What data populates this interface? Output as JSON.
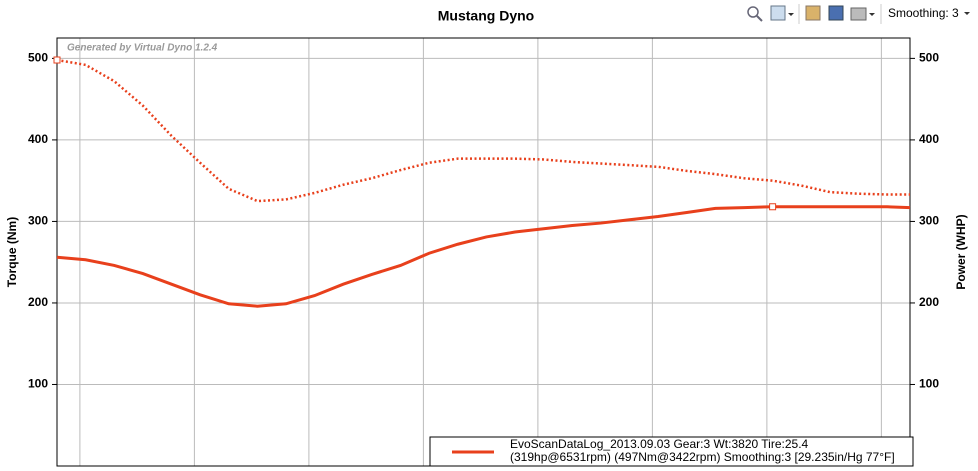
{
  "toolbar": {
    "smoothing": "Smoothing: 3"
  },
  "chart_data": {
    "type": "line",
    "title": "Mustang Dyno",
    "watermark": "Generated by Virtual Dyno 1.2.4",
    "y_label": "Torque (Nm)",
    "y2_label": "Power (WHP)",
    "x": [
      3400,
      3525,
      3650,
      3775,
      3900,
      4025,
      4150,
      4275,
      4400,
      4525,
      4650,
      4775,
      4900,
      5025,
      5150,
      5275,
      5400,
      5525,
      5650,
      5775,
      5900,
      6025,
      6150,
      6275,
      6400,
      6525,
      6650,
      6775,
      6900,
      7025,
      7125
    ],
    "xlim": [
      3400,
      7125
    ],
    "xticks": [
      3500,
      4000,
      4500,
      5000,
      5500,
      6000,
      6500,
      7000
    ],
    "ylim": [
      0,
      525
    ],
    "yticks": [
      100,
      200,
      300,
      400,
      500
    ],
    "y2lim": [
      0,
      525
    ],
    "y2ticks": [
      100,
      200,
      300,
      400,
      500
    ],
    "grid": true,
    "series": [
      {
        "color": "#e8401c",
        "style": "dotted",
        "axis": "y",
        "marker_index": 0,
        "values": [
          498,
          492,
          472,
          442,
          405,
          372,
          340,
          325,
          327,
          335,
          345,
          353,
          363,
          372,
          377,
          377,
          377,
          376,
          373,
          371,
          369,
          367,
          362,
          358,
          353,
          350,
          344,
          336,
          334,
          333,
          333
        ]
      },
      {
        "color": "#e8401c",
        "style": "solid",
        "axis": "y2",
        "marker_index": 25,
        "values": [
          256,
          253,
          246,
          236,
          223,
          210,
          199,
          196,
          199,
          209,
          223,
          235,
          246,
          261,
          272,
          281,
          287,
          291,
          295,
          298,
          302,
          306,
          311,
          316,
          317,
          318,
          318,
          318,
          318,
          318,
          317
        ]
      }
    ],
    "legend": {
      "lines": [
        "EvoScanDataLog_2013.09.03 Gear:3 Wt:3820 Tire:25.4",
        "(319hp@6531rpm) (497Nm@3422rpm) Smoothing:3 [29.235in/Hg 77°F]"
      ]
    }
  }
}
